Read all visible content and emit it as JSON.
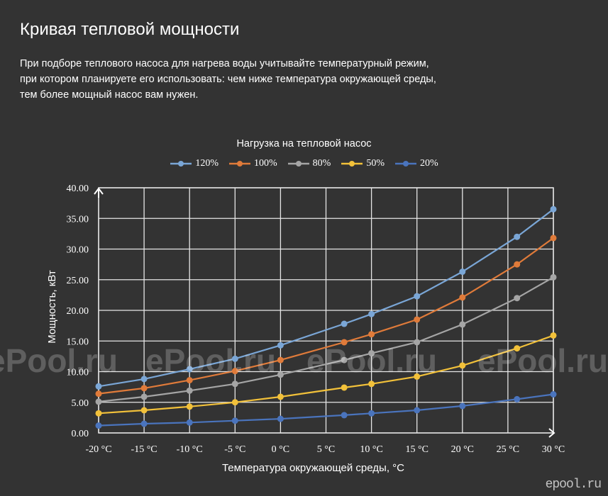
{
  "page": {
    "title": "Кривая тепловой мощности",
    "intro_lines": [
      "При подборе теплового насоса для нагрева воды учитывайте температурный режим,",
      "при котором планируете его использовать: чем ниже температура окружающей среды,",
      "тем более мощный насос вам нужен."
    ],
    "watermark": "ePool.ru",
    "corner_logo": "epool.ru"
  },
  "chart_data": {
    "type": "line",
    "title": "Нагрузка на тепловой насос",
    "xlabel": "Температура окружающей среды, °C",
    "ylabel": "Мощность, кВт",
    "x": [
      -20,
      -15,
      -10,
      -5,
      0,
      7,
      10,
      15,
      20,
      26,
      30
    ],
    "xticks": [
      -20,
      -15,
      -10,
      -5,
      0,
      5,
      10,
      15,
      20,
      25,
      30
    ],
    "xtick_labels": [
      "-20 °C",
      "-15 °C",
      "-10 °C",
      "-5 °C",
      "0 °C",
      "5 °C",
      "10 °C",
      "15 °C",
      "20 °C",
      "25 °C",
      "30 °C"
    ],
    "yticks": [
      0,
      5,
      10,
      15,
      20,
      25,
      30,
      35,
      40
    ],
    "ytick_labels": [
      "0.00",
      "5.00",
      "10.00",
      "15.00",
      "20.00",
      "25.00",
      "30.00",
      "35.00",
      "40.00"
    ],
    "xlim": [
      -20,
      30
    ],
    "ylim": [
      0,
      40
    ],
    "grid": true,
    "legend_position": "top-center",
    "series": [
      {
        "name": "120%",
        "color": "#7aa6d6",
        "values": [
          7.6,
          8.8,
          10.4,
          12.1,
          14.3,
          17.8,
          19.4,
          22.3,
          26.3,
          32.0,
          36.5
        ]
      },
      {
        "name": "100%",
        "color": "#e07b3a",
        "values": [
          6.4,
          7.3,
          8.6,
          10.1,
          11.9,
          14.8,
          16.1,
          18.5,
          22.1,
          27.5,
          31.8
        ]
      },
      {
        "name": "80%",
        "color": "#a5a5a5",
        "values": [
          5.1,
          5.9,
          6.9,
          8.0,
          9.5,
          11.9,
          13.0,
          14.8,
          17.7,
          22.0,
          25.4
        ]
      },
      {
        "name": "50%",
        "color": "#f2c13a",
        "values": [
          3.2,
          3.7,
          4.3,
          5.0,
          5.9,
          7.4,
          8.0,
          9.2,
          11.0,
          13.8,
          15.9
        ]
      },
      {
        "name": "20%",
        "color": "#4a74bd",
        "values": [
          1.2,
          1.5,
          1.7,
          2.0,
          2.3,
          2.9,
          3.2,
          3.7,
          4.4,
          5.5,
          6.3
        ]
      }
    ]
  }
}
